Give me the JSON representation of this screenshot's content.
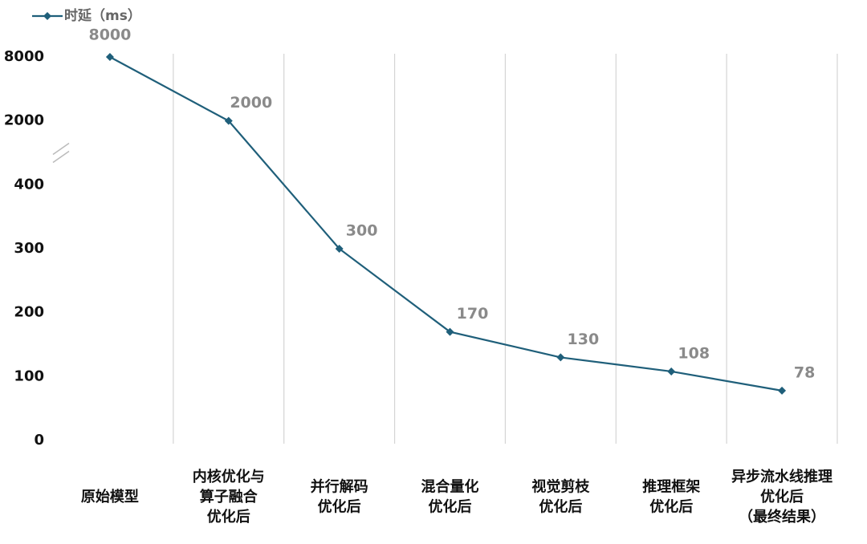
{
  "chart_data": {
    "type": "line",
    "categories": [
      [
        "原始模型"
      ],
      [
        "内核优化与",
        "算子融合",
        "优化后"
      ],
      [
        "并行解码",
        "优化后"
      ],
      [
        "混合量化",
        "优化后"
      ],
      [
        "视觉剪枝",
        "优化后"
      ],
      [
        "推理框架",
        "优化后"
      ],
      [
        "异步流水线推理",
        "优化后",
        "（最终结果）"
      ]
    ],
    "series": [
      {
        "name": "时延（ms）",
        "color": "#1f5f7a",
        "values": [
          8000,
          2000,
          300,
          170,
          130,
          108,
          78
        ]
      }
    ],
    "ylim": [
      0,
      8000
    ],
    "yticks": [
      0,
      100,
      200,
      300,
      400,
      2000,
      8000
    ],
    "axis_break": [
      400,
      2000
    ],
    "grid": true,
    "legend": "top-left"
  }
}
